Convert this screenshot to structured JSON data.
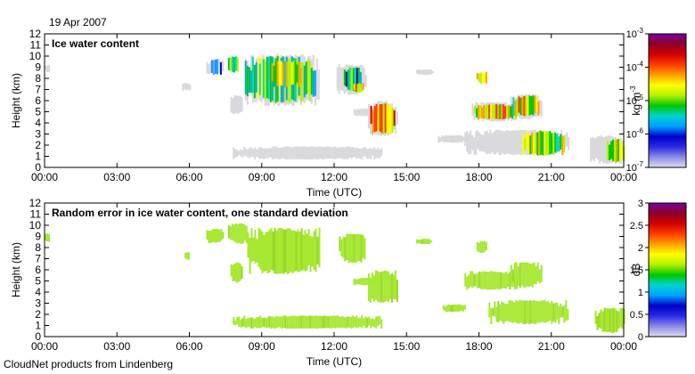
{
  "date": "19 Apr 2007",
  "footer": "CloudNet products from Lindenberg",
  "colors": {
    "background": "#ffffff",
    "missing_data": "#d8d8dc",
    "error_fill": "#a6e832",
    "colormap": [
      "#dcdcf0",
      "#8c8ce6",
      "#2a2ae6",
      "#0000c8",
      "#00a0ff",
      "#00d2d2",
      "#00c800",
      "#b4f000",
      "#ffff00",
      "#ffa000",
      "#ff3c00",
      "#d20000",
      "#8c0028",
      "#7a00a0"
    ]
  },
  "chart_data": [
    {
      "type": "heatmap",
      "title": "Ice water content",
      "xlabel": "Time (UTC)",
      "ylabel": "Height (km)",
      "xlim": [
        0,
        24
      ],
      "ylim": [
        0,
        12
      ],
      "x_ticks": [
        "00:00",
        "03:00",
        "06:00",
        "09:00",
        "12:00",
        "15:00",
        "18:00",
        "21:00",
        "00:00"
      ],
      "y_ticks": [
        "0",
        "1",
        "2",
        "3",
        "4",
        "5",
        "6",
        "7",
        "8",
        "9",
        "10",
        "11",
        "12"
      ],
      "colorbar": {
        "label": "kg m",
        "label_exponent": "-3",
        "scale": "log",
        "range": [
          1e-07,
          0.001
        ],
        "ticks": [
          {
            "base": "10",
            "exp": "-7"
          },
          {
            "base": "10",
            "exp": "-6"
          },
          {
            "base": "10",
            "exp": "-5"
          },
          {
            "base": "10",
            "exp": "-4"
          },
          {
            "base": "10",
            "exp": "-3"
          }
        ]
      },
      "features": [
        {
          "kind": "retrieval",
          "t0": 6.9,
          "t1": 7.3,
          "h0": 8.3,
          "h1": 9.8,
          "level": 0.2
        },
        {
          "kind": "retrieval",
          "t0": 7.6,
          "t1": 8.0,
          "h0": 8.5,
          "h1": 10.0,
          "level": 0.45
        },
        {
          "kind": "retrieval",
          "t0": 8.3,
          "t1": 11.2,
          "h0": 5.8,
          "h1": 10.0,
          "level": 0.42
        },
        {
          "kind": "retrieval",
          "t0": 9.4,
          "t1": 10.6,
          "h0": 7.2,
          "h1": 9.6,
          "level": 0.55
        },
        {
          "kind": "retrieval",
          "t0": 12.4,
          "t1": 13.1,
          "h0": 6.8,
          "h1": 9.0,
          "level": 0.4
        },
        {
          "kind": "retrieval",
          "t0": 12.8,
          "t1": 13.2,
          "h0": 6.7,
          "h1": 7.6,
          "level": 0.65
        },
        {
          "kind": "retrieval",
          "t0": 13.5,
          "t1": 14.5,
          "h0": 3.0,
          "h1": 5.8,
          "level": 0.65
        },
        {
          "kind": "retrieval",
          "t0": 17.9,
          "t1": 18.3,
          "h0": 7.5,
          "h1": 8.6,
          "level": 0.6
        },
        {
          "kind": "retrieval",
          "t0": 17.8,
          "t1": 19.5,
          "h0": 4.3,
          "h1": 5.7,
          "level": 0.6
        },
        {
          "kind": "retrieval",
          "t0": 19.4,
          "t1": 20.5,
          "h0": 4.6,
          "h1": 6.5,
          "level": 0.58
        },
        {
          "kind": "retrieval",
          "t0": 19.8,
          "t1": 21.5,
          "h0": 1.0,
          "h1": 3.3,
          "level": 0.55
        },
        {
          "kind": "retrieval",
          "t0": 23.3,
          "t1": 24.0,
          "h0": 0.4,
          "h1": 2.6,
          "level": 0.55
        },
        {
          "kind": "missing",
          "t0": 0.0,
          "t1": 0.2,
          "h0": 8.5,
          "h1": 9.2
        },
        {
          "kind": "missing",
          "t0": 5.7,
          "t1": 6.0,
          "h0": 6.9,
          "h1": 7.6
        },
        {
          "kind": "missing",
          "t0": 6.7,
          "t1": 7.4,
          "h0": 8.4,
          "h1": 9.6
        },
        {
          "kind": "missing",
          "t0": 7.7,
          "t1": 8.2,
          "h0": 4.8,
          "h1": 6.5
        },
        {
          "kind": "missing",
          "t0": 8.3,
          "t1": 11.4,
          "h0": 5.5,
          "h1": 10.2
        },
        {
          "kind": "missing",
          "t0": 12.1,
          "t1": 13.3,
          "h0": 6.5,
          "h1": 9.3
        },
        {
          "kind": "missing",
          "t0": 12.8,
          "t1": 13.7,
          "h0": 4.6,
          "h1": 5.3
        },
        {
          "kind": "missing",
          "t0": 13.4,
          "t1": 14.6,
          "h0": 2.8,
          "h1": 6.0
        },
        {
          "kind": "missing",
          "t0": 15.4,
          "t1": 16.1,
          "h0": 8.3,
          "h1": 8.8
        },
        {
          "kind": "missing",
          "t0": 17.7,
          "t1": 19.6,
          "h0": 4.1,
          "h1": 5.9
        },
        {
          "kind": "missing",
          "t0": 19.3,
          "t1": 20.6,
          "h0": 4.3,
          "h1": 6.6
        },
        {
          "kind": "missing",
          "t0": 17.4,
          "t1": 21.7,
          "h0": 1.1,
          "h1": 3.4
        },
        {
          "kind": "missing",
          "t0": 16.3,
          "t1": 17.5,
          "h0": 2.2,
          "h1": 2.9
        },
        {
          "kind": "missing",
          "t0": 7.8,
          "t1": 14.0,
          "h0": 0.7,
          "h1": 1.9
        },
        {
          "kind": "missing",
          "t0": 22.6,
          "t1": 24.0,
          "h0": 0.3,
          "h1": 2.9
        }
      ]
    },
    {
      "type": "heatmap",
      "title": "Random error in ice water content, one standard deviation",
      "xlabel": "Time (UTC)",
      "ylabel": "Height (km)",
      "xlim": [
        0,
        24
      ],
      "ylim": [
        0,
        12
      ],
      "x_ticks": [
        "00:00",
        "03:00",
        "06:00",
        "09:00",
        "12:00",
        "15:00",
        "18:00",
        "21:00",
        "00:00"
      ],
      "y_ticks": [
        "0",
        "1",
        "2",
        "3",
        "4",
        "5",
        "6",
        "7",
        "8",
        "9",
        "10",
        "11",
        "12"
      ],
      "colorbar": {
        "label": "dB",
        "scale": "linear",
        "range": [
          0,
          3
        ],
        "ticks": [
          "0",
          "0.5",
          "1",
          "1.5",
          "2",
          "2.5",
          "3"
        ]
      },
      "error_value_db": 1.55,
      "features": [
        {
          "t0": 0.0,
          "t1": 0.2,
          "h0": 8.5,
          "h1": 9.3
        },
        {
          "t0": 5.8,
          "t1": 6.0,
          "h0": 6.9,
          "h1": 7.6
        },
        {
          "t0": 6.7,
          "t1": 7.4,
          "h0": 8.4,
          "h1": 9.7
        },
        {
          "t0": 7.6,
          "t1": 8.4,
          "h0": 8.3,
          "h1": 10.2
        },
        {
          "t0": 7.7,
          "t1": 8.2,
          "h0": 4.8,
          "h1": 6.7
        },
        {
          "t0": 8.4,
          "t1": 11.4,
          "h0": 5.6,
          "h1": 9.8
        },
        {
          "t0": 12.2,
          "t1": 13.3,
          "h0": 6.6,
          "h1": 9.3
        },
        {
          "t0": 12.8,
          "t1": 13.7,
          "h0": 4.6,
          "h1": 5.3
        },
        {
          "t0": 13.4,
          "t1": 14.6,
          "h0": 3.0,
          "h1": 6.0
        },
        {
          "t0": 15.4,
          "t1": 16.0,
          "h0": 8.3,
          "h1": 8.8
        },
        {
          "t0": 17.9,
          "t1": 18.3,
          "h0": 7.5,
          "h1": 8.6
        },
        {
          "t0": 17.4,
          "t1": 19.6,
          "h0": 4.2,
          "h1": 5.9
        },
        {
          "t0": 19.3,
          "t1": 20.6,
          "h0": 4.4,
          "h1": 6.7
        },
        {
          "t0": 16.5,
          "t1": 17.4,
          "h0": 2.2,
          "h1": 2.9
        },
        {
          "t0": 18.4,
          "t1": 21.7,
          "h0": 1.1,
          "h1": 3.3
        },
        {
          "t0": 7.8,
          "t1": 14.0,
          "h0": 0.7,
          "h1": 1.9
        },
        {
          "t0": 22.8,
          "t1": 24.0,
          "h0": 0.3,
          "h1": 2.6
        }
      ]
    }
  ]
}
